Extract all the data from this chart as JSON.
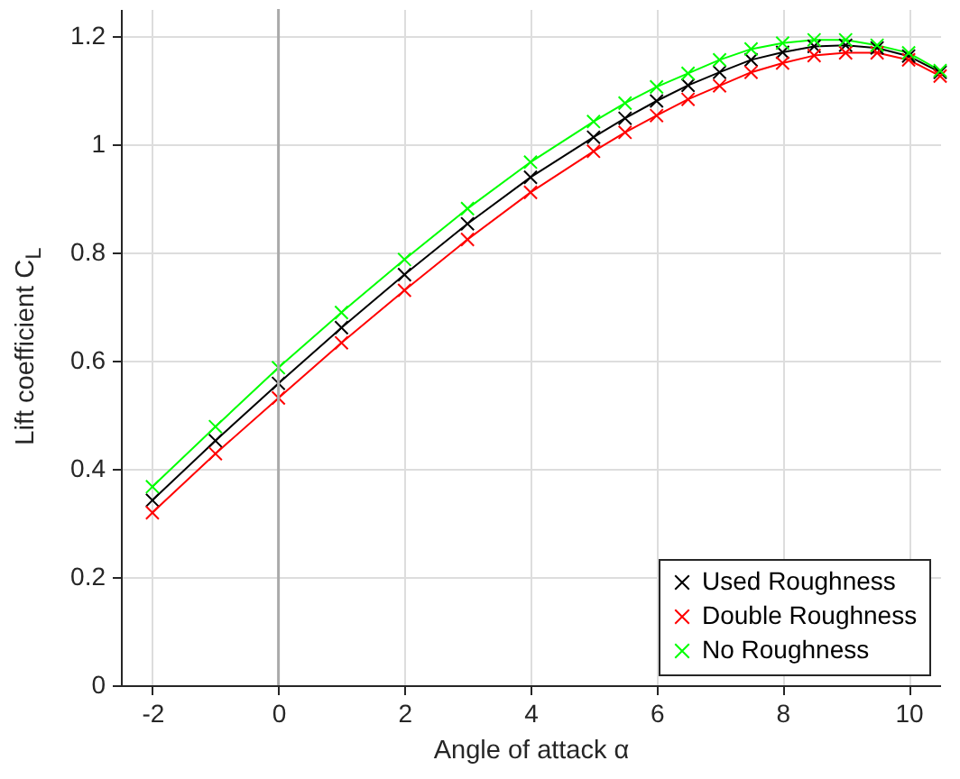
{
  "chart_data": {
    "type": "line",
    "xlabel": "Angle of attack α",
    "ylabel": "Lift coefficient C$_{L}$",
    "x": [
      -2,
      -1,
      0,
      1,
      2,
      3,
      4,
      5,
      5.5,
      6,
      6.5,
      7,
      7.5,
      8,
      8.5,
      9,
      9.5,
      10,
      10.5
    ],
    "series": [
      {
        "name": "Used Roughness",
        "color": "#000000",
        "values": [
          0.342,
          0.452,
          0.558,
          0.661,
          0.759,
          0.853,
          0.939,
          1.013,
          1.048,
          1.08,
          1.109,
          1.133,
          1.156,
          1.17,
          1.181,
          1.183,
          1.178,
          1.163,
          1.133
        ]
      },
      {
        "name": "Double Roughness",
        "color": "#ff0000",
        "values": [
          0.319,
          0.428,
          0.531,
          0.633,
          0.73,
          0.824,
          0.911,
          0.987,
          1.022,
          1.053,
          1.083,
          1.108,
          1.133,
          1.15,
          1.164,
          1.169,
          1.169,
          1.156,
          1.126
        ]
      },
      {
        "name": "No Roughness",
        "color": "#00ff00",
        "values": [
          0.367,
          0.478,
          0.587,
          0.689,
          0.787,
          0.881,
          0.967,
          1.042,
          1.076,
          1.106,
          1.131,
          1.156,
          1.176,
          1.187,
          1.193,
          1.193,
          1.183,
          1.169,
          1.136
        ]
      }
    ],
    "xlim": [
      -2.5,
      10.5
    ],
    "xticks": [
      -2,
      0,
      2,
      4,
      6,
      8,
      10
    ],
    "ylim": [
      0,
      1.25
    ],
    "yticks": [
      0,
      0.2,
      0.4,
      0.6,
      0.8,
      1,
      1.2
    ],
    "ref_lines": [
      {
        "axis": "x",
        "value": 0,
        "color": "#aaaaaa"
      }
    ],
    "grid": true,
    "legend": "bottom right",
    "marker": "cross",
    "line_style": "solid"
  }
}
